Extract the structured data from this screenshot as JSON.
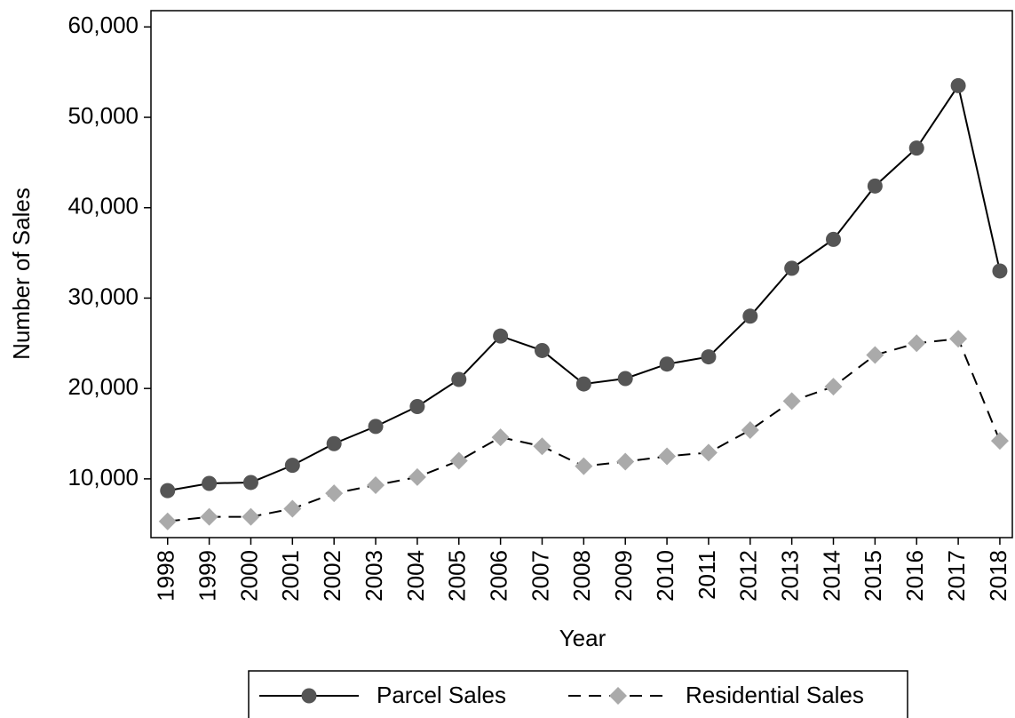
{
  "chart_data": {
    "type": "line",
    "x_label": "Year",
    "y_label": "Number of Sales",
    "x": [
      1998,
      1999,
      2000,
      2001,
      2002,
      2003,
      2004,
      2005,
      2006,
      2007,
      2008,
      2009,
      2010,
      2011,
      2012,
      2013,
      2014,
      2015,
      2016,
      2017,
      2018
    ],
    "series": [
      {
        "name": "Parcel Sales",
        "color": "#555555",
        "line_color": "#000000",
        "line_style": "solid",
        "marker": "circle",
        "values": [
          8700,
          9500,
          9600,
          11500,
          13900,
          15800,
          18000,
          21000,
          25800,
          24200,
          20500,
          21100,
          22700,
          23500,
          28000,
          33300,
          36500,
          42400,
          46600,
          53500,
          33000
        ]
      },
      {
        "name": "Residential Sales",
        "color": "#aaaaaa",
        "line_color": "#000000",
        "line_style": "dashed",
        "marker": "diamond",
        "values": [
          5300,
          5800,
          5800,
          6700,
          8400,
          9300,
          10200,
          12000,
          14600,
          13600,
          11400,
          11900,
          12500,
          12900,
          15400,
          18600,
          20200,
          23700,
          25000,
          25500,
          14200
        ]
      }
    ],
    "xlim": [
      1997.6,
      2018.3
    ],
    "xticks": [
      1998,
      1999,
      2000,
      2001,
      2002,
      2003,
      2004,
      2005,
      2006,
      2007,
      2008,
      2009,
      2010,
      2011,
      2012,
      2013,
      2014,
      2015,
      2016,
      2017,
      2018
    ],
    "ylim": [
      3500,
      61800
    ],
    "yticks": [
      {
        "value": 10000,
        "label": "10,000"
      },
      {
        "value": 20000,
        "label": "20,000"
      },
      {
        "value": 30000,
        "label": "30,000"
      },
      {
        "value": 40000,
        "label": "40,000"
      },
      {
        "value": 50000,
        "label": "50,000"
      },
      {
        "value": 60000,
        "label": "60,000"
      }
    ],
    "legend": "bottom"
  }
}
